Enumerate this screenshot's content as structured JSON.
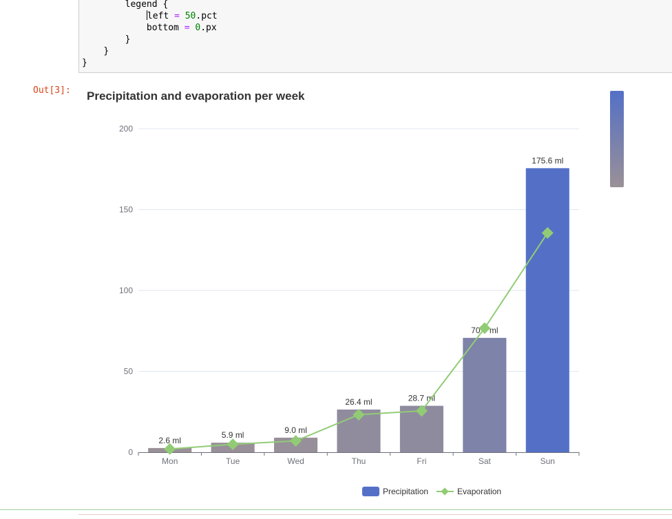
{
  "code": {
    "lines": [
      {
        "indent": "        ",
        "text": "legend {"
      },
      {
        "indent": "            ",
        "key": "left",
        "op": "=",
        "num": "50",
        "suffix": ".pct"
      },
      {
        "indent": "            ",
        "key": "bottom",
        "op": "=",
        "num": "0",
        "suffix": ".px"
      },
      {
        "indent": "        ",
        "text": "}"
      },
      {
        "indent": "    ",
        "text": "}"
      },
      {
        "indent": "",
        "text": "}"
      }
    ]
  },
  "output": {
    "prompt": "Out[3]:"
  },
  "chart_data": {
    "type": "bar",
    "title": "Precipitation and evaporation per week",
    "categories": [
      "Mon",
      "Tue",
      "Wed",
      "Thu",
      "Fri",
      "Sat",
      "Sun"
    ],
    "ylim": [
      0,
      200
    ],
    "yticks": [
      0,
      50,
      100,
      150,
      200
    ],
    "grid": true,
    "series": [
      {
        "name": "Precipitation",
        "type": "bar",
        "values": [
          2.6,
          5.9,
          9.0,
          26.4,
          28.7,
          70.7,
          175.6
        ],
        "labels": [
          "2.6 ml",
          "5.9 ml",
          "9.0 ml",
          "26.4 ml",
          "28.7 ml",
          "70.7 ml",
          "175.6 ml"
        ]
      },
      {
        "name": "Evaporation",
        "type": "line",
        "values": [
          2.0,
          4.9,
          7.0,
          23.2,
          25.6,
          76.7,
          135.6
        ]
      }
    ],
    "legend_position": "bottom-center",
    "visual_map": {
      "min_color": "#9a9097",
      "max_color": "#5470c6"
    },
    "colors": {
      "line": "#91cc75",
      "bar_high": "#5470c6",
      "bar_low": "#9a9097"
    }
  }
}
